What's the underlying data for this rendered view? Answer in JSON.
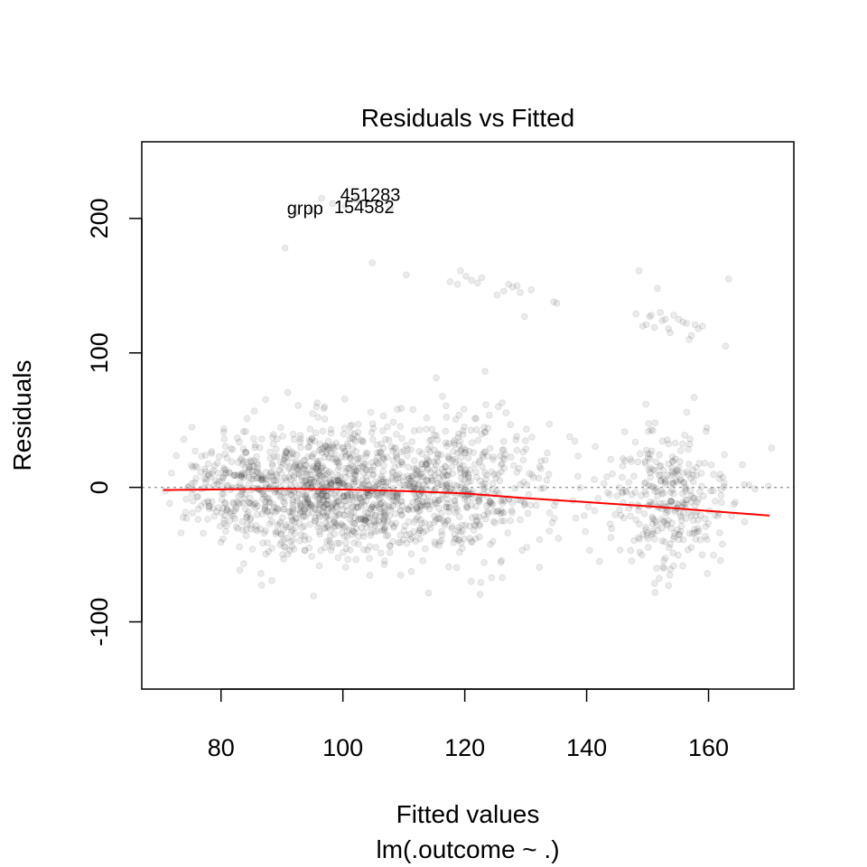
{
  "chart_data": {
    "type": "scatter",
    "title": "Residuals vs Fitted",
    "xlabel": "Fitted values",
    "subtitle": "lm(.outcome ~ .)",
    "ylabel": "Residuals",
    "xlim": [
      67,
      174
    ],
    "ylim": [
      -150,
      257
    ],
    "xticks": [
      80,
      100,
      120,
      140,
      160
    ],
    "yticks": [
      -100,
      0,
      100,
      200
    ],
    "reference_line": 0,
    "point_color": "#000000",
    "point_opacity": 0.08,
    "smooth_color": "#ff0000",
    "reference_color": "#9a9a9a",
    "point_count": 2000,
    "labeled_points": [
      {
        "label": "451283",
        "x": 104.5,
        "y": 213
      },
      {
        "label": "154582",
        "x": 103.5,
        "y": 204
      },
      {
        "label": "grpp",
        "x": 93.8,
        "y": 203
      }
    ],
    "clusters": [
      {
        "cx": 97,
        "cy": -2,
        "sx": 9,
        "sy": 24,
        "n": 950
      },
      {
        "cx": 118,
        "cy": 0,
        "sx": 8,
        "sy": 26,
        "n": 560
      },
      {
        "cx": 153,
        "cy": -10,
        "sx": 5.5,
        "sy": 28,
        "n": 330
      },
      {
        "cx": 81,
        "cy": -2,
        "sx": 4,
        "sy": 18,
        "n": 120
      }
    ],
    "outliers": [
      {
        "x": 90.5,
        "y": 178
      },
      {
        "x": 92.2,
        "y": 204
      },
      {
        "x": 94.8,
        "y": 206
      },
      {
        "x": 96.5,
        "y": 215
      },
      {
        "x": 98.3,
        "y": 211
      },
      {
        "x": 100.4,
        "y": 209
      },
      {
        "x": 102.3,
        "y": 214
      },
      {
        "x": 107.8,
        "y": 207
      },
      {
        "x": 104.8,
        "y": 167
      },
      {
        "x": 110.4,
        "y": 158
      },
      {
        "x": 117.6,
        "y": 153
      },
      {
        "x": 118.8,
        "y": 151
      },
      {
        "x": 119.3,
        "y": 161
      },
      {
        "x": 120.2,
        "y": 157
      },
      {
        "x": 121.1,
        "y": 154
      },
      {
        "x": 122.1,
        "y": 152
      },
      {
        "x": 122.8,
        "y": 156
      },
      {
        "x": 125.3,
        "y": 143
      },
      {
        "x": 126.4,
        "y": 146
      },
      {
        "x": 127.2,
        "y": 151
      },
      {
        "x": 127.9,
        "y": 149
      },
      {
        "x": 128.6,
        "y": 150
      },
      {
        "x": 129.1,
        "y": 145
      },
      {
        "x": 129.8,
        "y": 127
      },
      {
        "x": 130.9,
        "y": 147
      },
      {
        "x": 134.6,
        "y": 138
      },
      {
        "x": 135.1,
        "y": 137
      },
      {
        "x": 148.1,
        "y": 129
      },
      {
        "x": 148.6,
        "y": 161
      },
      {
        "x": 149.2,
        "y": 120
      },
      {
        "x": 149.8,
        "y": 121
      },
      {
        "x": 150.3,
        "y": 127
      },
      {
        "x": 150.6,
        "y": 128
      },
      {
        "x": 151.1,
        "y": 119
      },
      {
        "x": 151.6,
        "y": 148
      },
      {
        "x": 152.1,
        "y": 130
      },
      {
        "x": 152.4,
        "y": 124
      },
      {
        "x": 152.9,
        "y": 125
      },
      {
        "x": 153.4,
        "y": 118
      },
      {
        "x": 153.7,
        "y": 115
      },
      {
        "x": 154.3,
        "y": 128
      },
      {
        "x": 155.1,
        "y": 125
      },
      {
        "x": 155.8,
        "y": 123
      },
      {
        "x": 156.4,
        "y": 122
      },
      {
        "x": 156.8,
        "y": 110
      },
      {
        "x": 157.2,
        "y": 113
      },
      {
        "x": 157.8,
        "y": 121
      },
      {
        "x": 158.3,
        "y": 118
      },
      {
        "x": 159.0,
        "y": 120
      },
      {
        "x": 162.8,
        "y": 105
      },
      {
        "x": 163.3,
        "y": 155
      }
    ],
    "smooth": [
      [
        70.5,
        -2
      ],
      [
        80,
        -1.5
      ],
      [
        90,
        -1
      ],
      [
        100,
        -1.6
      ],
      [
        110,
        -2.8
      ],
      [
        120,
        -4.5
      ],
      [
        130,
        -8
      ],
      [
        140,
        -11
      ],
      [
        150,
        -14
      ],
      [
        160,
        -17.5
      ],
      [
        170,
        -21
      ]
    ]
  }
}
